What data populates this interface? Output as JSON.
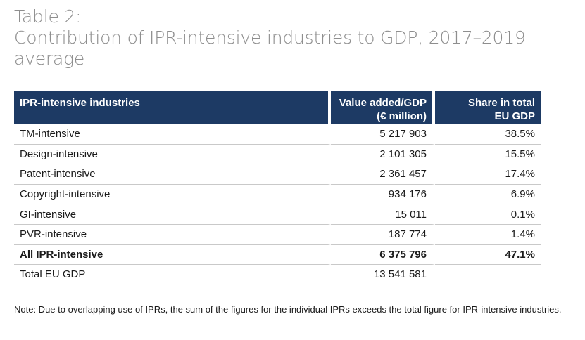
{
  "title": {
    "line1": "Table 2:",
    "line2": "Contribution of IPR-intensive industries to GDP, 2017–2019",
    "line3": "average"
  },
  "table": {
    "headers": {
      "col1": "IPR-intensive industries",
      "col2_line1": "Value added/GDP",
      "col2_line2": "(€ million)",
      "col3_line1": "Share in total",
      "col3_line2": "EU GDP"
    },
    "rows": [
      {
        "industry": "TM-intensive",
        "value": "5 217 903",
        "share": "38.5%"
      },
      {
        "industry": "Design-intensive",
        "value": "2 101 305",
        "share": "15.5%"
      },
      {
        "industry": "Patent-intensive",
        "value": "2 361 457",
        "share": "17.4%"
      },
      {
        "industry": "Copyright-intensive",
        "value": "934 176",
        "share": "6.9%"
      },
      {
        "industry": "GI-intensive",
        "value": "15 011",
        "share": "0.1%"
      },
      {
        "industry": "PVR-intensive",
        "value": "187 774",
        "share": "1.4%"
      },
      {
        "industry": "All IPR-intensive",
        "value": "6 375 796",
        "share": "47.1%"
      },
      {
        "industry": "Total EU GDP",
        "value": "13 541 581",
        "share": ""
      }
    ],
    "header_color": "#1d3a64"
  },
  "note": "Note: Due to overlapping use of IPRs, the sum of the figures for the individual IPRs exceeds the total figure for IPR-intensive industries."
}
